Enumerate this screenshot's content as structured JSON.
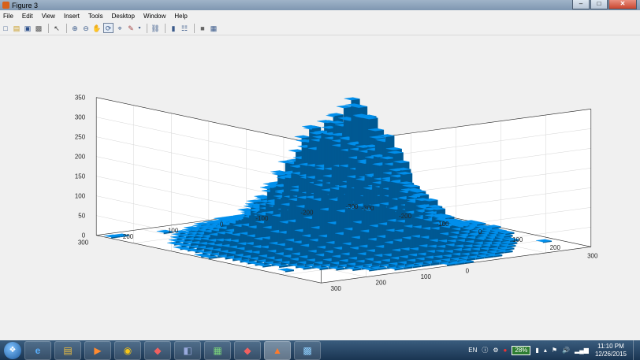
{
  "window": {
    "title": "Figure 3",
    "controls": {
      "minimize": "–",
      "maximize": "□",
      "close": "✕"
    }
  },
  "menu": [
    "File",
    "Edit",
    "View",
    "Insert",
    "Tools",
    "Desktop",
    "Window",
    "Help"
  ],
  "toolbar": [
    "new-figure-icon",
    "open-file-icon",
    "save-icon",
    "print-icon",
    "|",
    "edit-plot-arrow-icon",
    "|",
    "zoom-in-icon",
    "zoom-out-icon",
    "pan-hand-icon",
    "rotate-3d-icon",
    "data-cursor-icon",
    "brush-icon",
    "brush-dropdown-icon",
    "|",
    "link-plot-icon",
    "|",
    "colorbar-icon",
    "legend-icon",
    "|",
    "hide-plot-tools-icon",
    "show-plot-tools-icon"
  ],
  "chart_data": {
    "type": "histogram3d",
    "color": "#0072bd",
    "xlim": [
      -300,
      300
    ],
    "ylim": [
      -300,
      300
    ],
    "zlim": [
      0,
      350
    ],
    "x_ticks": [
      "-300",
      "-200",
      "-100",
      "0",
      "100",
      "200",
      "300"
    ],
    "y_ticks": [
      "300",
      "200",
      "100",
      "0",
      "-100",
      "-200",
      "-300"
    ],
    "z_ticks": [
      "0",
      "50",
      "100",
      "150",
      "200",
      "250",
      "300",
      "350"
    ],
    "grid": true,
    "distribution": {
      "shape": "bivariate-gaussian",
      "center": [
        0,
        0
      ],
      "peak_count": 320
    }
  },
  "taskbar": {
    "apps": [
      "windows-explorer-icon",
      "internet-explorer-icon",
      "file-explorer-icon",
      "media-player-icon",
      "chrome-icon",
      "sketchup-icon",
      "network-tool-icon",
      "spreadsheet-icon",
      "sketchup-icon-2",
      "matlab-icon",
      "remote-desktop-icon"
    ],
    "language": "EN",
    "battery": "28%",
    "time": "11:10 PM",
    "date": "12/26/2015"
  },
  "colors": {
    "surface": "#0072bd",
    "axis": "#262626",
    "grid": "#d6d6d6",
    "figure_bg": "#f0f0f0",
    "taskbar": "#1a3552"
  }
}
